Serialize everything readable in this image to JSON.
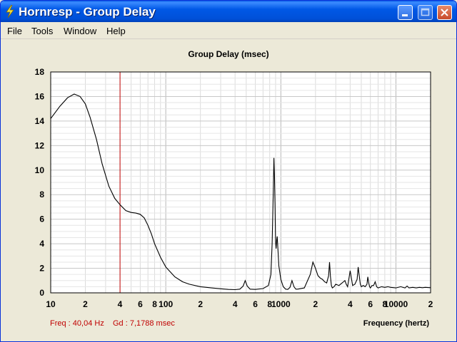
{
  "window": {
    "title": "Hornresp - Group Delay"
  },
  "menu": [
    {
      "label": "File"
    },
    {
      "label": "Tools"
    },
    {
      "label": "Window"
    },
    {
      "label": "Help"
    }
  ],
  "status": {
    "freq": "Freq : 40,04 Hz",
    "gd": "Gd : 7,1788 msec"
  },
  "chart_data": {
    "type": "line",
    "title": "Group Delay (msec)",
    "xlabel": "Frequency (hertz)",
    "ylabel": "",
    "x_scale": "log",
    "xlim": [
      10,
      20000
    ],
    "ylim": [
      0,
      18
    ],
    "grid": true,
    "y_ticks": [
      "0",
      "2",
      "4",
      "6",
      "8",
      "10",
      "12",
      "14",
      "16",
      "18"
    ],
    "x_ticks": [
      {
        "v": 10,
        "label": "10"
      },
      {
        "v": 20,
        "label": "2"
      },
      {
        "v": 40,
        "label": "4"
      },
      {
        "v": 60,
        "label": "6"
      },
      {
        "v": 80,
        "label": "8"
      },
      {
        "v": 100,
        "label": "100"
      },
      {
        "v": 200,
        "label": "2"
      },
      {
        "v": 400,
        "label": "4"
      },
      {
        "v": 600,
        "label": "6"
      },
      {
        "v": 800,
        "label": "8"
      },
      {
        "v": 1000,
        "label": "1000"
      },
      {
        "v": 2000,
        "label": "2"
      },
      {
        "v": 4000,
        "label": "4"
      },
      {
        "v": 6000,
        "label": "6"
      },
      {
        "v": 8000,
        "label": "8"
      },
      {
        "v": 10000,
        "label": "10000"
      },
      {
        "v": 20000,
        "label": "2"
      }
    ],
    "marker_x": 40.04,
    "line_color": "#000000",
    "marker_color": "#c00000",
    "series": [
      {
        "x": [
          10,
          12,
          14,
          16,
          18,
          20,
          22,
          25,
          28,
          32,
          36,
          40,
          45,
          50,
          55,
          60,
          65,
          70,
          75,
          80,
          90,
          100,
          120,
          140,
          160,
          200,
          250,
          300,
          350,
          400,
          440,
          470,
          490,
          510,
          540,
          600,
          700,
          780,
          820,
          840,
          860,
          870,
          880,
          890,
          900,
          910,
          920,
          930,
          940,
          960,
          1000,
          1050,
          1100,
          1150,
          1200,
          1250,
          1300,
          1350,
          1400,
          1600,
          1800,
          1900,
          2000,
          2100,
          2200,
          2300,
          2400,
          2500,
          2600,
          2650,
          2700,
          2750,
          2800,
          2900,
          3000,
          3200,
          3400,
          3500,
          3600,
          3700,
          3800,
          4000,
          4200,
          4400,
          4600,
          4700,
          4800,
          4900,
          5000,
          5200,
          5400,
          5600,
          5700,
          5800,
          5900,
          6000,
          6200,
          6400,
          6600,
          6800,
          7000,
          7500,
          8000,
          8500,
          9000,
          10000,
          11000,
          12000,
          12500,
          13000,
          14000,
          15000,
          16000,
          17000,
          18000,
          20000
        ],
        "y": [
          14.2,
          15.2,
          15.9,
          16.2,
          16.0,
          15.4,
          14.3,
          12.5,
          10.5,
          8.7,
          7.7,
          7.18,
          6.7,
          6.55,
          6.5,
          6.4,
          6.1,
          5.5,
          4.8,
          4.0,
          2.9,
          2.1,
          1.3,
          0.9,
          0.7,
          0.5,
          0.4,
          0.33,
          0.28,
          0.26,
          0.3,
          0.55,
          1.0,
          0.55,
          0.3,
          0.28,
          0.35,
          0.6,
          1.5,
          4.0,
          8.5,
          11.0,
          9.5,
          7.0,
          4.2,
          3.6,
          4.3,
          4.6,
          3.8,
          2.2,
          1.1,
          0.5,
          0.3,
          0.28,
          0.45,
          1.0,
          0.5,
          0.3,
          0.3,
          0.4,
          1.5,
          2.5,
          2.0,
          1.4,
          1.2,
          1.1,
          0.9,
          0.8,
          1.4,
          2.5,
          1.3,
          0.6,
          0.4,
          0.5,
          0.7,
          0.6,
          0.8,
          0.9,
          1.0,
          0.7,
          0.5,
          1.8,
          0.6,
          0.7,
          1.1,
          2.1,
          1.4,
          0.7,
          0.5,
          0.6,
          0.5,
          0.7,
          1.3,
          0.8,
          0.5,
          0.4,
          0.6,
          0.6,
          0.9,
          0.5,
          0.4,
          0.5,
          0.45,
          0.5,
          0.45,
          0.4,
          0.5,
          0.4,
          0.55,
          0.4,
          0.45,
          0.4,
          0.45,
          0.42,
          0.45,
          0.42
        ]
      }
    ]
  }
}
